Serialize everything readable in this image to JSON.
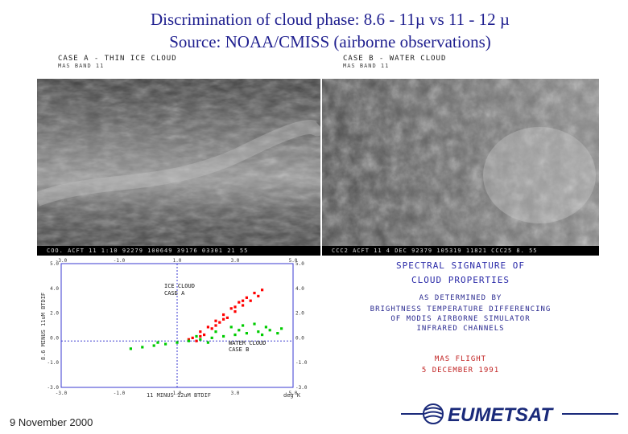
{
  "title_line1": "Discrimination of cloud phase: 8.6 - 11µ vs 11 - 12 µ",
  "title_line2": "Source: NOAA/CMISS (airborne observations)",
  "panel_a": {
    "case_label": "CASE A - THIN ICE CLOUD",
    "band_label": "MAS BAND 11",
    "footer": "COO. ACFT   11  1:10 92279 100649 39176 03301 21 55"
  },
  "panel_b": {
    "case_label": "CASE B - WATER CLOUD",
    "band_label": "MAS BAND 11",
    "footer": "CCC2 ACFT   11  4 DEC 92379 105319 11821 CCC25 8. 55"
  },
  "chart_data": {
    "type": "scatter",
    "xlabel": "11 MINUS 12uM BTDIF",
    "ylabel": "8.6 MINUS 11uM BTDIF",
    "xunit": "deg K",
    "xlim": [
      -3.0,
      3.0
    ],
    "ylim": [
      -3.0,
      5.0
    ],
    "x_ticks": [
      "-3.0",
      "-1.0",
      "1.0",
      "3.0",
      "5.0"
    ],
    "y_ticks": [
      "5.0",
      "4.0",
      "2.0",
      "0.0",
      "-1.0",
      "-3.0"
    ],
    "series": [
      {
        "name": "ICE CLOUD CASE A",
        "color": "#ff0000",
        "points": [
          [
            0.4,
            0.2
          ],
          [
            0.6,
            0.6
          ],
          [
            0.8,
            0.9
          ],
          [
            1.0,
            1.3
          ],
          [
            1.2,
            1.7
          ],
          [
            1.4,
            2.1
          ],
          [
            1.6,
            2.5
          ],
          [
            1.8,
            2.8
          ],
          [
            2.0,
            3.1
          ],
          [
            0.5,
            0.0
          ],
          [
            0.7,
            0.4
          ],
          [
            0.9,
            0.8
          ],
          [
            1.1,
            1.2
          ],
          [
            1.3,
            1.5
          ],
          [
            1.5,
            1.9
          ],
          [
            1.7,
            2.3
          ],
          [
            1.9,
            2.6
          ],
          [
            2.1,
            2.9
          ],
          [
            0.3,
            0.1
          ],
          [
            0.6,
            0.3
          ],
          [
            1.0,
            1.0
          ],
          [
            1.2,
            1.4
          ],
          [
            1.5,
            2.2
          ],
          [
            1.7,
            2.6
          ],
          [
            2.2,
            3.3
          ]
        ]
      },
      {
        "name": "WATER CLOUD CASE B",
        "color": "#00cc00",
        "points": [
          [
            -1.2,
            -0.5
          ],
          [
            -0.9,
            -0.4
          ],
          [
            -0.6,
            -0.3
          ],
          [
            -0.3,
            -0.2
          ],
          [
            0.0,
            -0.1
          ],
          [
            0.3,
            0.0
          ],
          [
            0.6,
            0.1
          ],
          [
            0.9,
            0.2
          ],
          [
            1.2,
            0.3
          ],
          [
            1.5,
            0.4
          ],
          [
            1.8,
            0.5
          ],
          [
            2.1,
            0.6
          ],
          [
            2.4,
            0.7
          ],
          [
            2.7,
            0.8
          ],
          [
            1.4,
            0.9
          ],
          [
            1.7,
            1.0
          ],
          [
            2.0,
            1.1
          ],
          [
            2.3,
            0.9
          ],
          [
            -0.5,
            -0.1
          ],
          [
            0.5,
            0.3
          ],
          [
            1.0,
            0.6
          ],
          [
            1.6,
            0.7
          ],
          [
            2.2,
            0.4
          ],
          [
            2.6,
            0.5
          ],
          [
            0.8,
            -0.1
          ]
        ]
      }
    ],
    "annotations": [
      {
        "line1": "ICE CLOUD",
        "line2": "CASE A"
      },
      {
        "line1": "WATER CLOUD",
        "line2": "CASE B"
      }
    ]
  },
  "signature": {
    "heading1": "SPECTRAL SIGNATURE OF",
    "heading2": "CLOUD PROPERTIES",
    "line1": "AS DETERMINED BY",
    "line2": "BRIGHTNESS TEMPERATURE DIFFERENCING",
    "line3": "OF MODIS AIRBORNE SIMULATOR",
    "line4": "INFRARED CHANNELS",
    "flight": "MAS FLIGHT",
    "flight_date": "5 DECEMBER 1991"
  },
  "footer_date": "9 November 2000",
  "logo_text": "EUMETSAT"
}
